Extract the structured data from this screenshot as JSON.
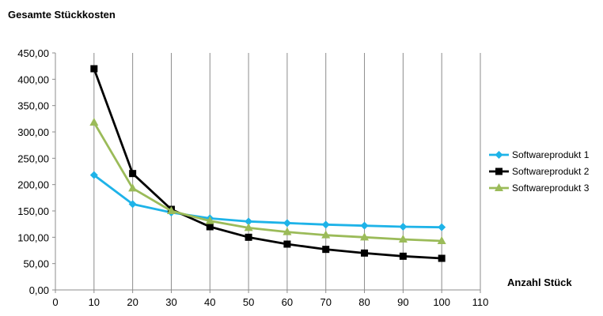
{
  "chart_data": {
    "type": "line",
    "title": "Gesamte Stückkosten",
    "xlabel": "Anzahl Stück",
    "ylabel": "",
    "xlim": [
      0,
      110
    ],
    "ylim": [
      0,
      450
    ],
    "x_ticks": [
      "0",
      "10",
      "20",
      "30",
      "40",
      "50",
      "60",
      "70",
      "80",
      "90",
      "100",
      "110"
    ],
    "y_ticks": [
      "0,00",
      "50,00",
      "100,00",
      "150,00",
      "200,00",
      "250,00",
      "300,00",
      "350,00",
      "400,00",
      "450,00"
    ],
    "x": [
      10,
      20,
      30,
      40,
      50,
      60,
      70,
      80,
      90,
      100
    ],
    "grid": "vertical",
    "legend_position": "right",
    "series": [
      {
        "name": "Softwareprodukt 1",
        "color": "#1EB3E8",
        "marker": "diamond",
        "values": [
          218,
          163,
          147,
          136,
          130,
          127,
          124,
          122,
          120,
          119
        ]
      },
      {
        "name": "Softwareprodukt 2",
        "color": "#000000",
        "marker": "square",
        "values": [
          420,
          221,
          153,
          120,
          100,
          87,
          77,
          70,
          64,
          60
        ]
      },
      {
        "name": "Softwareprodukt 3",
        "color": "#9BBB59",
        "marker": "triangle",
        "values": [
          318,
          193,
          150,
          131,
          118,
          110,
          104,
          100,
          96,
          93
        ]
      }
    ]
  }
}
